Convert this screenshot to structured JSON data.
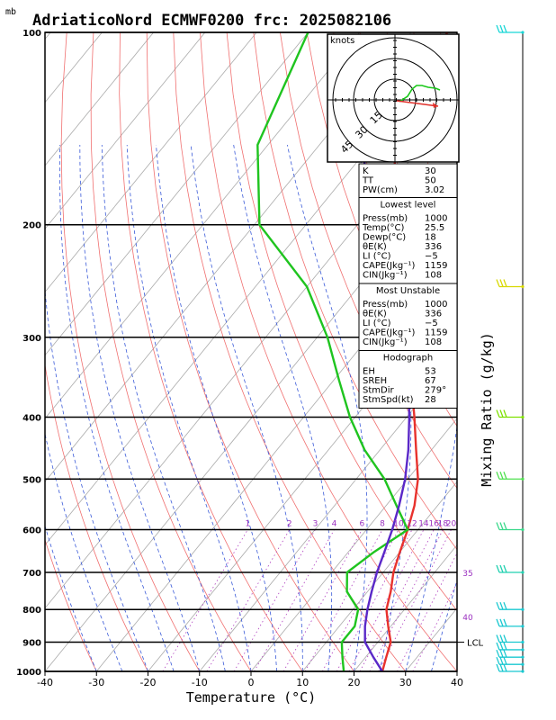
{
  "title": "AdriaticoNord ECMWF0200 frc: 2025082106",
  "pressure_unit_label": "mb",
  "chart_data": {
    "type": "line",
    "title": "AdriaticoNord ECMWF0200 frc: 2025082106",
    "xlabel": "Temperature (°C)",
    "ylabel": "",
    "right_label": "Mixing Ratio (g/kg)",
    "xlim": [
      -40,
      40
    ],
    "ylim": [
      1000,
      100
    ],
    "y_scale": "log",
    "x_ticks": [
      -40,
      -30,
      -20,
      -10,
      0,
      10,
      20,
      30,
      40
    ],
    "pressure_ticks": [
      100,
      200,
      300,
      400,
      500,
      600,
      700,
      800,
      900,
      1000
    ],
    "series": [
      {
        "name": "",
        "color": "#e8322d",
        "points": [
          [
            1000,
            25.5
          ],
          [
            950,
            24
          ],
          [
            900,
            22.5
          ],
          [
            850,
            19.5
          ],
          [
            800,
            16.5
          ],
          [
            750,
            14.5
          ],
          [
            700,
            12
          ],
          [
            650,
            10
          ],
          [
            600,
            8
          ],
          [
            550,
            5.5
          ],
          [
            500,
            2
          ],
          [
            450,
            -3
          ],
          [
            400,
            -8.5
          ],
          [
            350,
            -15
          ],
          [
            300,
            -22.5
          ],
          [
            250,
            -32
          ],
          [
            200,
            -44
          ],
          [
            150,
            -55
          ],
          [
            100,
            -63
          ]
        ]
      },
      {
        "name": "",
        "color": "#1fc41f",
        "points": [
          [
            1000,
            18
          ],
          [
            950,
            15.5
          ],
          [
            900,
            13
          ],
          [
            850,
            13
          ],
          [
            800,
            11
          ],
          [
            750,
            6
          ],
          [
            700,
            3
          ],
          [
            650,
            5
          ],
          [
            600,
            8
          ],
          [
            550,
            2
          ],
          [
            500,
            -4.5
          ],
          [
            450,
            -13
          ],
          [
            400,
            -21
          ],
          [
            350,
            -29
          ],
          [
            300,
            -38
          ],
          [
            250,
            -50
          ],
          [
            200,
            -69
          ],
          [
            150,
            -82
          ],
          [
            100,
            -90
          ]
        ]
      },
      {
        "name": "",
        "color": "#5a28c8",
        "points": [
          [
            1000,
            25.5
          ],
          [
            950,
            21.5
          ],
          [
            900,
            17.5
          ],
          [
            850,
            15
          ],
          [
            800,
            12.8
          ],
          [
            750,
            10.8
          ],
          [
            700,
            8.8
          ],
          [
            650,
            7
          ],
          [
            600,
            5
          ],
          [
            550,
            2.5
          ],
          [
            500,
            -0.5
          ],
          [
            450,
            -4.5
          ],
          [
            400,
            -9.5
          ],
          [
            350,
            -15.5
          ],
          [
            300,
            -23
          ],
          [
            250,
            -33
          ],
          [
            200,
            -46
          ],
          [
            150,
            -62
          ],
          [
            125,
            -72
          ]
        ]
      }
    ],
    "mixing_ratio_labels": [
      "1",
      "2",
      "3",
      "4",
      "6",
      "8",
      "10",
      "12",
      "14",
      "16",
      "18",
      "20",
      "25",
      "30"
    ],
    "right_axis_labels": [
      {
        "text": "35",
        "p": 700
      },
      {
        "text": "40",
        "p": 820
      },
      {
        "text": "LCL",
        "p": 900
      }
    ]
  },
  "hodograph": {
    "units_label": "knots",
    "ring_labels": [
      "15",
      "30",
      "45"
    ]
  },
  "indices_panel": [
    [
      [
        "K",
        "30"
      ],
      [
        "TT",
        "50"
      ],
      [
        "PW(cm)",
        "3.02"
      ]
    ],
    [
      [
        "Press(mb)",
        "1000"
      ],
      [
        "Temp(°C)",
        "25.5"
      ],
      [
        "Dewp(°C)",
        "18"
      ],
      [
        "θE(K)",
        "336"
      ],
      [
        "LI (°C)",
        "−5"
      ],
      [
        "CAPE(Jkg⁻¹)",
        "1159"
      ],
      [
        "CIN(Jkg⁻¹)",
        "108"
      ]
    ],
    [
      [
        "Press(mb)",
        "1000"
      ],
      [
        "θE(K)",
        "336"
      ],
      [
        "LI (°C)",
        "−5"
      ],
      [
        "CAPE(Jkg⁻¹)",
        "1159"
      ],
      [
        "CIN(Jkg⁻¹)",
        "108"
      ]
    ],
    [
      [
        "EH",
        "53"
      ],
      [
        "SREH",
        "67"
      ],
      [
        "StmDir",
        "279°"
      ],
      [
        "StmSpd(kt)",
        "28"
      ]
    ]
  ],
  "panel_headers": [
    "",
    "Lowest level",
    "Most Unstable",
    "Hodograph"
  ],
  "wind_barbs": [
    {
      "p": 100,
      "color": "#19d6d6"
    },
    {
      "p": 250,
      "color": "#d8d800"
    },
    {
      "p": 400,
      "color": "#7ee000"
    },
    {
      "p": 500,
      "color": "#4fe04f"
    },
    {
      "p": 600,
      "color": "#3ad88a"
    },
    {
      "p": 700,
      "color": "#22d0b0"
    },
    {
      "p": 800,
      "color": "#19c8d0"
    },
    {
      "p": 850,
      "color": "#19c8d0"
    },
    {
      "p": 900,
      "color": "#19c8d0"
    },
    {
      "p": 925,
      "color": "#19c8d0"
    },
    {
      "p": 950,
      "color": "#19c8d0"
    },
    {
      "p": 975,
      "color": "#19c8d0"
    },
    {
      "p": 1000,
      "color": "#19c8d0"
    }
  ]
}
